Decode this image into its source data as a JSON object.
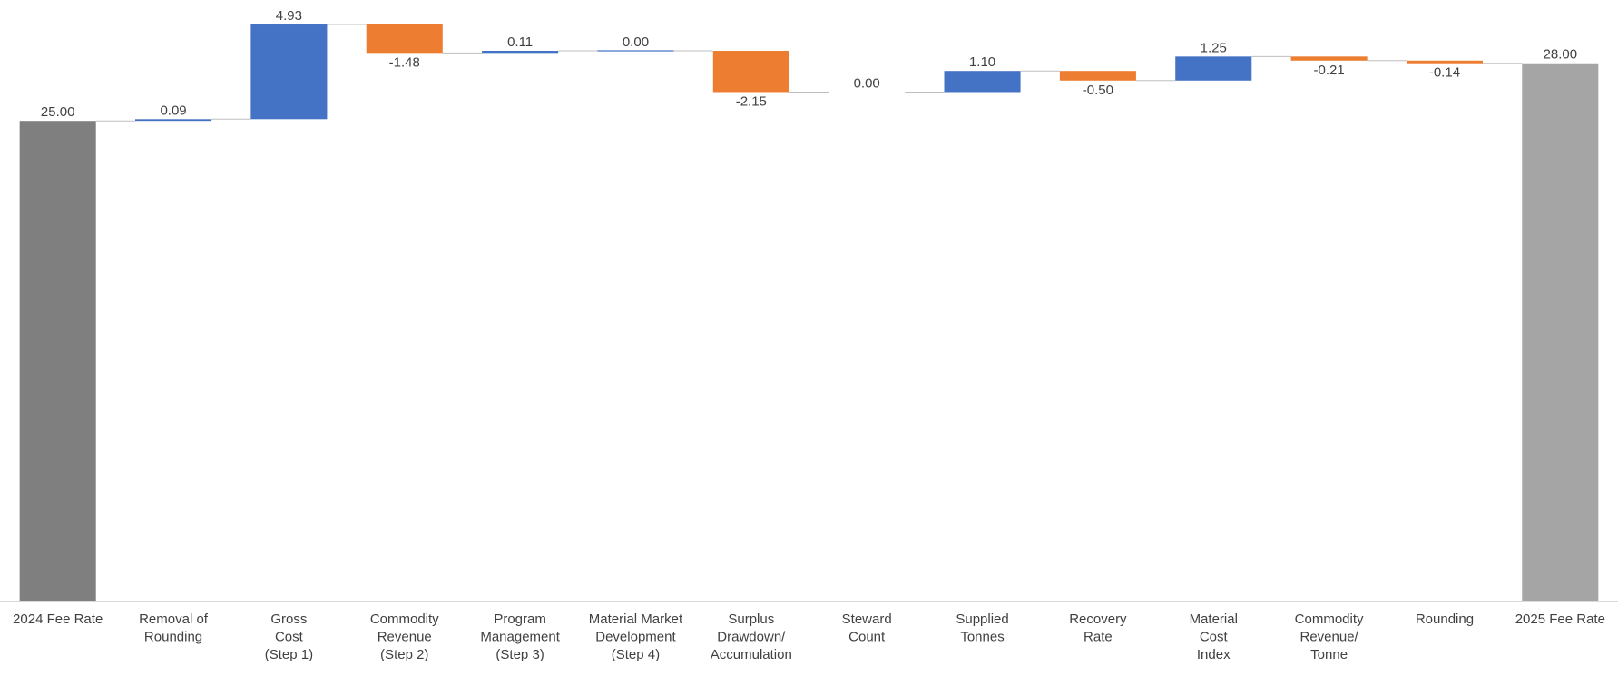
{
  "chart_data": {
    "type": "waterfall",
    "title": "",
    "xlabel": "",
    "ylabel": "",
    "ylim": [
      0,
      31.25
    ],
    "grid": false,
    "legend": "none",
    "colors": {
      "total_start": "#7f7f7f",
      "total_end": "#a5a5a5",
      "increase": "#4472c4",
      "decrease": "#ed7d31",
      "connector": "#bfbfbf",
      "axis": "#d9d9d9",
      "text": "#404040"
    },
    "items": [
      {
        "category": [
          "2024 Fee Rate"
        ],
        "value": 25.0,
        "label": "25.00",
        "kind": "total"
      },
      {
        "category": [
          "Removal of",
          "Rounding"
        ],
        "value": 0.09,
        "label": "0.09",
        "kind": "delta"
      },
      {
        "category": [
          "Gross",
          "Cost",
          "(Step 1)"
        ],
        "value": 4.93,
        "label": "4.93",
        "kind": "delta"
      },
      {
        "category": [
          "Commodity",
          "Revenue",
          "(Step 2)"
        ],
        "value": -1.48,
        "label": "-1.48",
        "kind": "delta"
      },
      {
        "category": [
          "Program",
          "Management",
          "(Step 3)"
        ],
        "value": 0.11,
        "label": "0.11",
        "kind": "delta"
      },
      {
        "category": [
          "Material Market",
          "Development",
          "(Step 4)"
        ],
        "value": 0.0,
        "label": "0.00",
        "kind": "delta"
      },
      {
        "category": [
          "Surplus",
          "Drawdown/",
          "Accumulation"
        ],
        "value": -2.15,
        "label": "-2.15",
        "kind": "delta"
      },
      {
        "category": [
          "Steward",
          "Count"
        ],
        "value": 0.0,
        "label": "0.00",
        "kind": "delta"
      },
      {
        "category": [
          "Supplied",
          "Tonnes"
        ],
        "value": 1.1,
        "label": "1.10",
        "kind": "delta"
      },
      {
        "category": [
          "Recovery",
          "Rate"
        ],
        "value": -0.5,
        "label": "-0.50",
        "kind": "delta"
      },
      {
        "category": [
          "Material",
          "Cost",
          "Index"
        ],
        "value": 1.25,
        "label": "1.25",
        "kind": "delta"
      },
      {
        "category": [
          "Commodity",
          "Revenue/",
          "Tonne"
        ],
        "value": -0.21,
        "label": "-0.21",
        "kind": "delta"
      },
      {
        "category": [
          "Rounding"
        ],
        "value": -0.14,
        "label": "-0.14",
        "kind": "delta"
      },
      {
        "category": [
          "2025 Fee Rate"
        ],
        "value": 28.0,
        "label": "28.00",
        "kind": "total"
      }
    ]
  }
}
